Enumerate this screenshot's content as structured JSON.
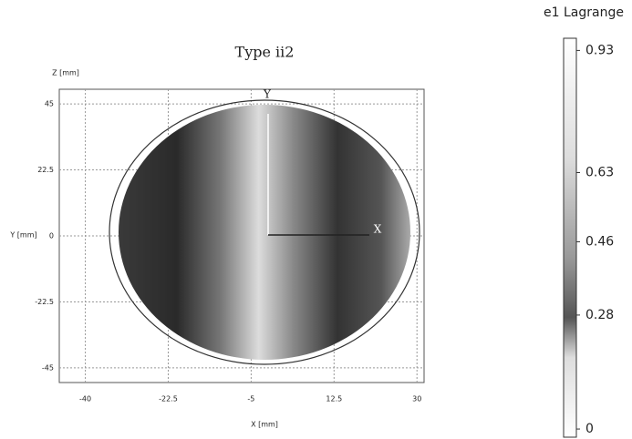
{
  "chart_data": {
    "type": "contour",
    "title": "Type ii2",
    "xlabel": "X [mm]",
    "ylabel": "Y [mm]",
    "zlabel": "Z [mm]",
    "xlim": [
      -45.5,
      31.5
    ],
    "xticks": [
      -40,
      -22.5,
      -5,
      12.5,
      30
    ],
    "ylim": [
      -50,
      50
    ],
    "yticks": [
      45,
      22.5,
      0,
      -22.5,
      -45
    ],
    "grid": true,
    "axis_arrows": [
      "Y",
      "X"
    ],
    "colorbar": {
      "title": "e1 Lagrange",
      "clim": [
        -0.02,
        0.96
      ],
      "ticks": [
        0.93,
        0.63,
        0.46,
        0.28,
        0
      ]
    }
  }
}
